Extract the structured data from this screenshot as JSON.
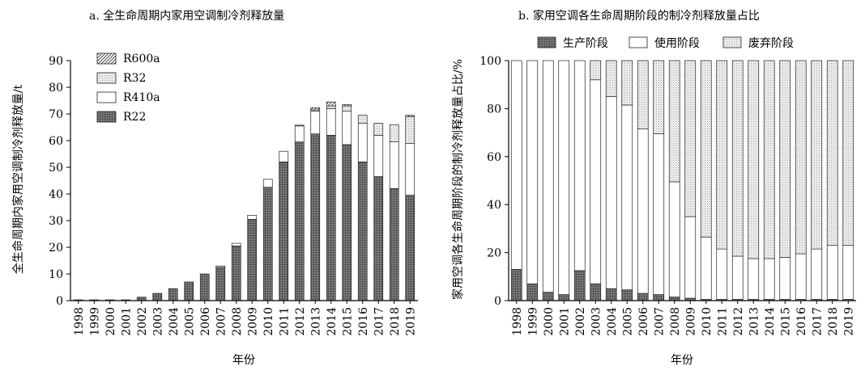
{
  "charts": [
    {
      "title": "a. 全生命周期内家用空调制冷剂释放量",
      "type": "stacked-bar",
      "xlabel": "年份",
      "ylabel": "全生命周期内家用空调制冷剂释放量/t",
      "ylim": [
        0,
        90
      ],
      "yticks": [
        0,
        10,
        20,
        30,
        40,
        50,
        60,
        70,
        80,
        90
      ],
      "legend_position": "top-left",
      "categories": [
        "1998",
        "1999",
        "2000",
        "2001",
        "2002",
        "2003",
        "2004",
        "2005",
        "2006",
        "2007",
        "2008",
        "2009",
        "2010",
        "2011",
        "2012",
        "2013",
        "2014",
        "2015",
        "2016",
        "2017",
        "2018",
        "2019"
      ],
      "series": [
        {
          "name": "R22",
          "pattern": "dots-dark",
          "values": [
            0.3,
            0.3,
            0.3,
            0.3,
            1.3,
            2.7,
            4.5,
            7.0,
            10.0,
            12.5,
            20.5,
            30.5,
            42.5,
            52.0,
            59.5,
            62.5,
            62.0,
            58.5,
            52.0,
            46.5,
            42.0,
            39.5
          ]
        },
        {
          "name": "R410a",
          "pattern": "white",
          "values": [
            0,
            0,
            0,
            0,
            0,
            0,
            0,
            0,
            0,
            0.5,
            1.0,
            1.5,
            3.0,
            4.0,
            6.0,
            8.5,
            10.0,
            12.5,
            14.5,
            15.5,
            17.5,
            19.5
          ]
        },
        {
          "name": "R32",
          "pattern": "dots-light",
          "values": [
            0,
            0,
            0,
            0,
            0,
            0,
            0,
            0,
            0,
            0,
            0,
            0,
            0,
            0,
            0.3,
            0.5,
            1.0,
            2.0,
            3.0,
            4.5,
            6.5,
            10.0
          ]
        },
        {
          "name": "R600a",
          "pattern": "hatch",
          "values": [
            0,
            0,
            0,
            0,
            0,
            0,
            0,
            0,
            0,
            0,
            0,
            0,
            0,
            0,
            0,
            0.8,
            1.5,
            0.5,
            0,
            0,
            0,
            0.5
          ]
        }
      ]
    },
    {
      "title": "b. 家用空调各生命周期阶段的制冷剂释放量占比",
      "type": "stacked-bar",
      "xlabel": "年份",
      "ylabel": "家用空调各生命周期阶段的制冷剂释放量占比/%",
      "ylim": [
        0,
        100
      ],
      "yticks": [
        0,
        20,
        40,
        60,
        80,
        100
      ],
      "legend_position": "top",
      "categories": [
        "1998",
        "1999",
        "2000",
        "2001",
        "2002",
        "2003",
        "2004",
        "2005",
        "2006",
        "2007",
        "2008",
        "2009",
        "2010",
        "2011",
        "2012",
        "2013",
        "2014",
        "2015",
        "2016",
        "2017",
        "2018",
        "2019"
      ],
      "series": [
        {
          "name": "生产阶段",
          "pattern": "dots-dark",
          "values": [
            13,
            7,
            3.5,
            2.5,
            12.5,
            7,
            5,
            4.5,
            3,
            2.5,
            1.5,
            1,
            0.5,
            0.5,
            0.5,
            0.5,
            0.5,
            0.5,
            0.5,
            0.5,
            0.5,
            0.5
          ]
        },
        {
          "name": "使用阶段",
          "pattern": "white",
          "values": [
            87,
            93,
            96.5,
            97.5,
            87.5,
            85,
            80,
            77,
            68.5,
            67,
            48,
            34,
            26,
            21,
            18,
            17,
            17,
            17.5,
            19,
            21,
            22.5,
            22.5
          ]
        },
        {
          "name": "废弃阶段",
          "pattern": "dots-light",
          "values": [
            0,
            0,
            0,
            0,
            0,
            8,
            15,
            18.5,
            28.5,
            30.5,
            50.5,
            65,
            73.5,
            78.5,
            81.5,
            82.5,
            82.5,
            82,
            80.5,
            78.5,
            77,
            77
          ]
        }
      ]
    }
  ]
}
